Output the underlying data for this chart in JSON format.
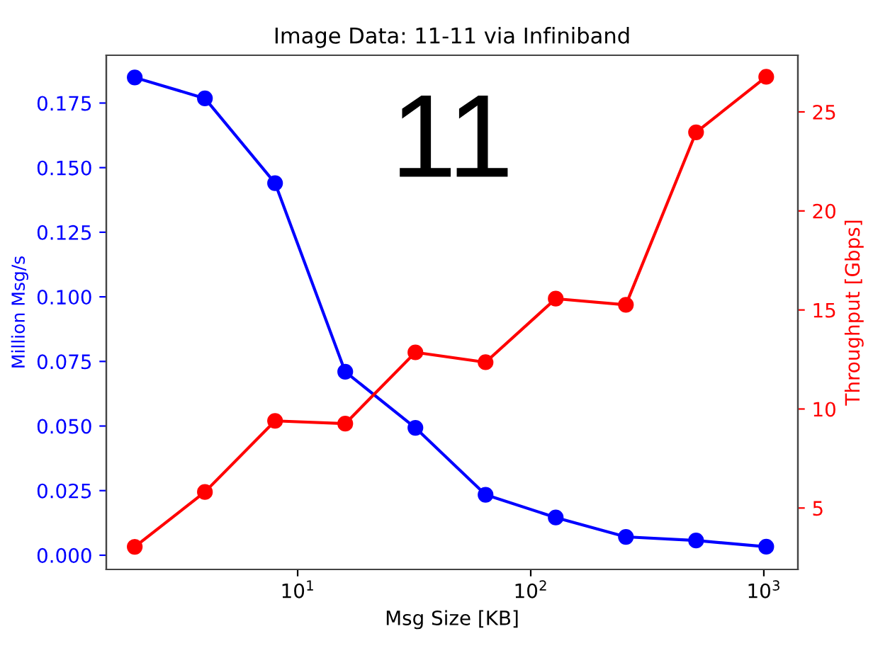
{
  "chart_data": {
    "type": "line",
    "title": "Image Data: 11-11 via Infiniband",
    "xlabel": "Msg Size [KB]",
    "ylabel": "Million Msg/s",
    "y2label": "Throughput [Gbps]",
    "annotations": [
      "11"
    ],
    "x": [
      2,
      4,
      8,
      16,
      32,
      64,
      128,
      256,
      512,
      1024
    ],
    "series": [
      {
        "color": "#0000ff",
        "values": [
          0.1849,
          0.1768,
          0.144,
          0.071,
          0.0493,
          0.0234,
          0.0146,
          0.0071,
          0.0057,
          0.0033
        ]
      },
      {
        "color": "#ff0000",
        "axis": "y2",
        "values": [
          3.04,
          5.81,
          9.4,
          9.26,
          12.86,
          12.36,
          15.57,
          15.26,
          23.97,
          26.77
        ]
      }
    ],
    "log": "x",
    "xlim": [
      1.51,
      1400
    ],
    "xticks": [
      {
        "value": 10,
        "label": "10$^{1}$"
      },
      {
        "value": 100,
        "label": "10$^{2}$"
      },
      {
        "value": 1000,
        "label": "10$^{3}$"
      }
    ],
    "ylim": [
      -0.0055,
      0.1935
    ],
    "yticks": [
      {
        "value": 0,
        "label": "0.000"
      },
      {
        "value": 0.025,
        "label": "0.025"
      },
      {
        "value": 0.05,
        "label": "0.050"
      },
      {
        "value": 0.075,
        "label": "0.075"
      },
      {
        "value": 0.1,
        "label": "0.100"
      },
      {
        "value": 0.125,
        "label": "0.125"
      },
      {
        "value": 0.15,
        "label": "0.150"
      },
      {
        "value": 0.175,
        "label": "0.175"
      }
    ],
    "y2lim": [
      1.9,
      27.86
    ],
    "y2ticks": [
      5,
      10,
      15,
      20,
      25
    ],
    "marker": "circle",
    "line_style": "solid",
    "grid": false
  }
}
